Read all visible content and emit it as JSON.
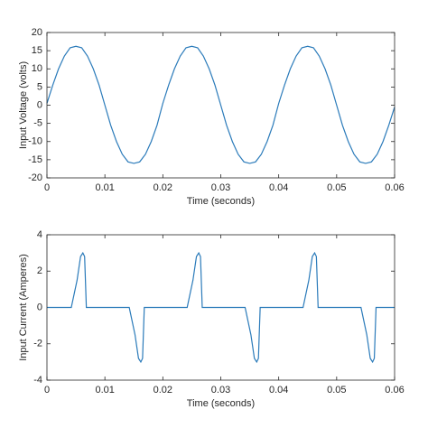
{
  "chart_data": [
    {
      "type": "line",
      "xlabel": "Time (seconds)",
      "ylabel": "Input Voltage (volts)",
      "x": [
        0,
        0.001,
        0.002,
        0.003,
        0.004,
        0.005,
        0.006,
        0.007,
        0.008,
        0.009,
        0.01,
        0.011,
        0.012,
        0.013,
        0.014,
        0.015,
        0.016,
        0.017,
        0.018,
        0.019,
        0.02,
        0.021,
        0.022,
        0.023,
        0.024,
        0.025,
        0.026,
        0.027,
        0.028,
        0.029,
        0.03,
        0.031,
        0.032,
        0.033,
        0.034,
        0.035,
        0.036,
        0.037,
        0.038,
        0.039,
        0.04,
        0.041,
        0.042,
        0.043,
        0.044,
        0.045,
        0.046,
        0.047,
        0.048,
        0.049,
        0.05,
        0.051,
        0.052,
        0.053,
        0.054,
        0.055,
        0.056,
        0.057,
        0.058,
        0.059,
        0.06
      ],
      "series": [
        {
          "color": "#2b7bba",
          "values": [
            0.5,
            5.5,
            10,
            13.5,
            15.8,
            16.2,
            15.8,
            13.5,
            10,
            5.5,
            0,
            -5.5,
            -10,
            -13.5,
            -15.6,
            -16,
            -15.6,
            -13.5,
            -10,
            -5.5,
            0.5,
            5.5,
            10,
            13.5,
            15.8,
            16.2,
            15.8,
            13.5,
            10,
            5.5,
            0,
            -5.5,
            -10,
            -13.5,
            -15.6,
            -16,
            -15.6,
            -13.5,
            -10,
            -5.5,
            0.5,
            5.5,
            10,
            13.5,
            15.8,
            16.2,
            15.8,
            13.5,
            10,
            5.5,
            0,
            -5.5,
            -10,
            -13.5,
            -15.6,
            -16,
            -15.6,
            -13.5,
            -10,
            -5.5,
            -0.5
          ]
        }
      ],
      "xlim": [
        0,
        0.06
      ],
      "xticks": [
        0,
        0.01,
        0.02,
        0.03,
        0.04,
        0.05,
        0.06
      ],
      "ylim": [
        -20,
        20
      ],
      "yticks": [
        -20,
        -15,
        -10,
        -5,
        0,
        5,
        10,
        15,
        20
      ]
    },
    {
      "type": "line",
      "xlabel": "Time (seconds)",
      "ylabel": "Input Current (Amperes)",
      "x": [
        0,
        0.0042,
        0.0052,
        0.0058,
        0.0062,
        0.0065,
        0.0068,
        0.0142,
        0.0152,
        0.0158,
        0.0162,
        0.0165,
        0.0168,
        0.02,
        0.0242,
        0.0252,
        0.0258,
        0.0262,
        0.0265,
        0.0268,
        0.0342,
        0.0352,
        0.0358,
        0.0362,
        0.0365,
        0.0368,
        0.04,
        0.0442,
        0.0452,
        0.0458,
        0.0462,
        0.0465,
        0.0468,
        0.0542,
        0.0552,
        0.0558,
        0.0562,
        0.0565,
        0.0568,
        0.06
      ],
      "series": [
        {
          "color": "#2b7bba",
          "values": [
            0,
            0,
            1.5,
            2.8,
            3,
            2.8,
            0,
            0,
            -1.5,
            -2.8,
            -3,
            -2.8,
            0,
            0,
            0,
            1.5,
            2.8,
            3,
            2.8,
            0,
            0,
            -1.5,
            -2.8,
            -3,
            -2.8,
            0,
            0,
            0,
            1.5,
            2.8,
            3,
            2.8,
            0,
            0,
            -1.5,
            -2.8,
            -3,
            -2.8,
            0,
            0
          ]
        }
      ],
      "xlim": [
        0,
        0.06
      ],
      "xticks": [
        0,
        0.01,
        0.02,
        0.03,
        0.04,
        0.05,
        0.06
      ],
      "ylim": [
        -4,
        4
      ],
      "yticks": [
        -4,
        -2,
        0,
        2,
        4
      ]
    }
  ]
}
